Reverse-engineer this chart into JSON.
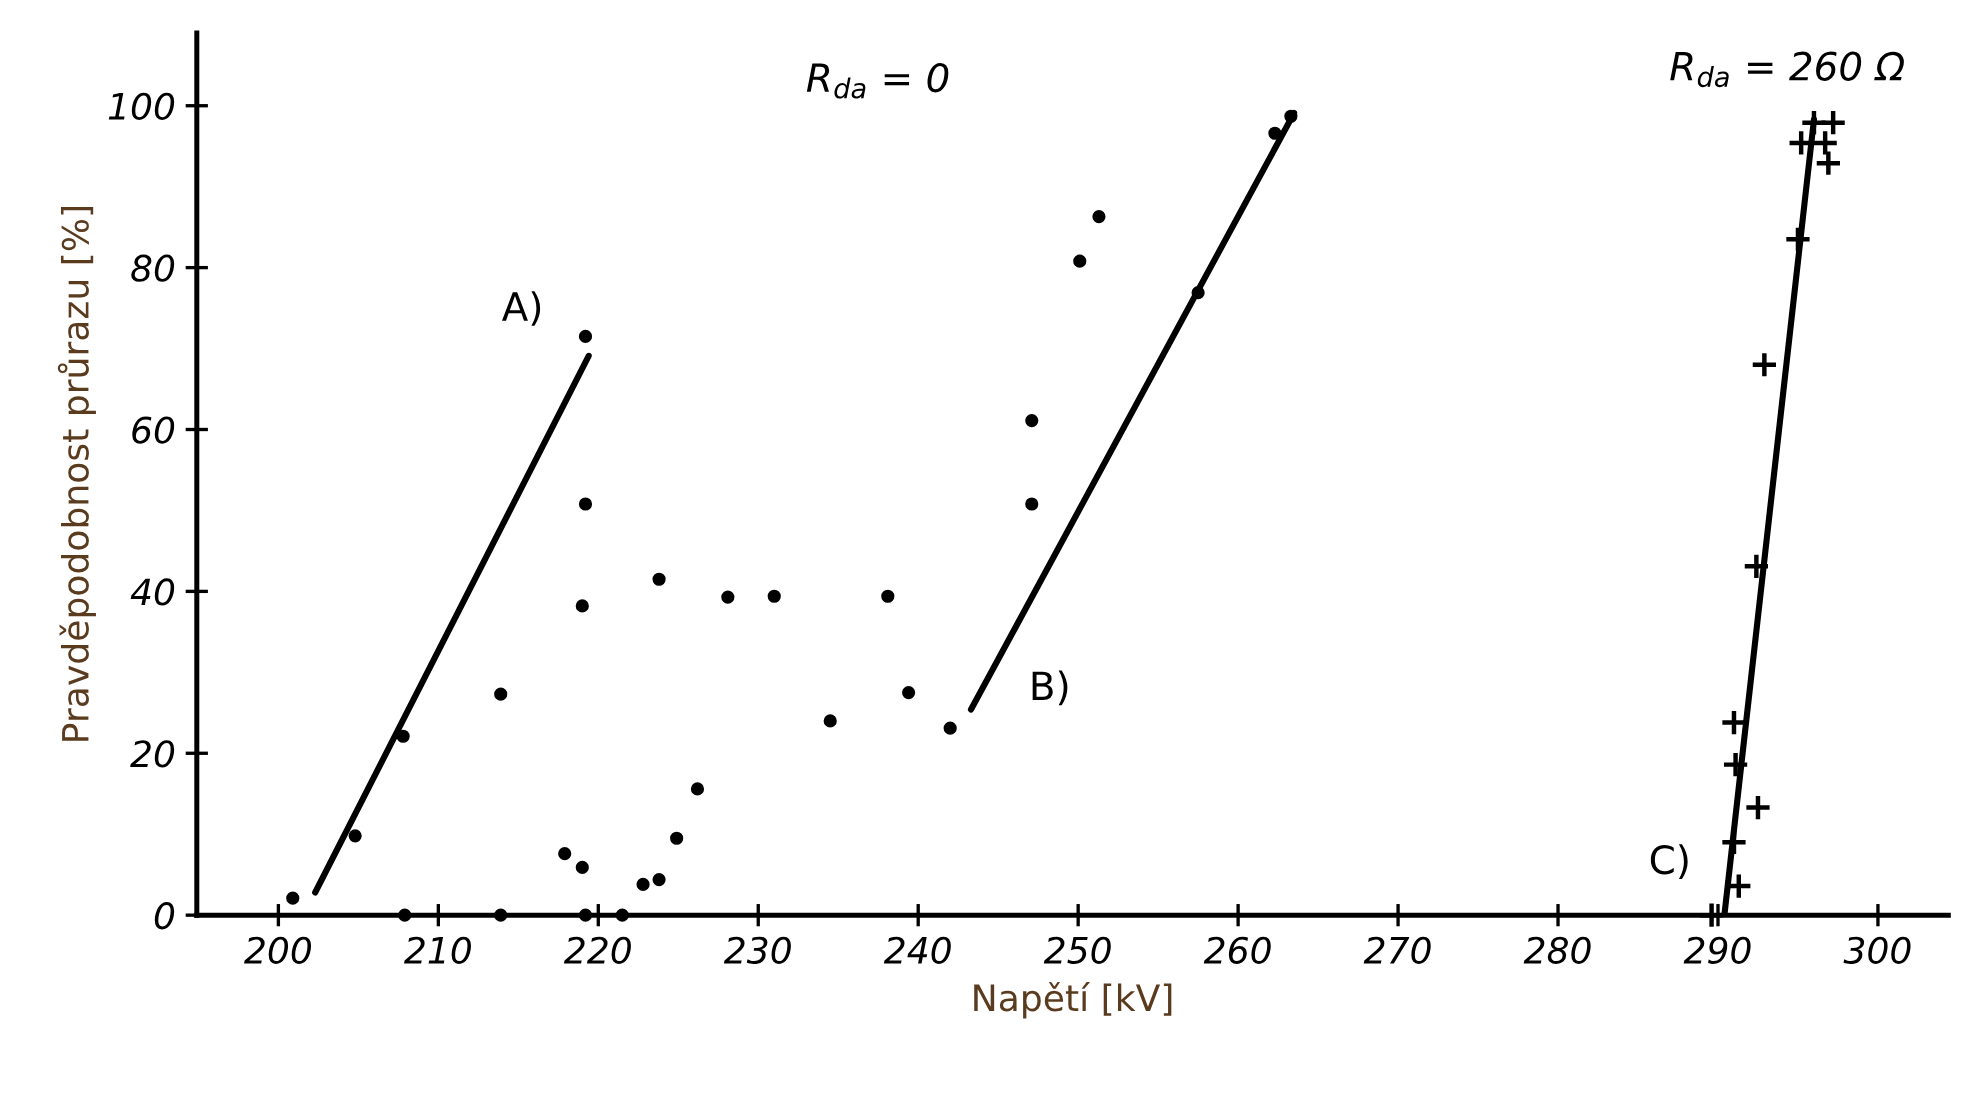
{
  "chart_data": {
    "type": "scatter",
    "xlabel": "Napětí [kV]",
    "ylabel": "Pravděpodobnost průrazu [%]",
    "xlim": [
      194.9,
      304.4
    ],
    "ylim": [
      0,
      109
    ],
    "xticks": [
      200,
      210,
      220,
      230,
      240,
      250,
      260,
      270,
      280,
      290,
      300
    ],
    "yticks": [
      0,
      20,
      40,
      60,
      80,
      100
    ],
    "grid": false,
    "legend": false,
    "series": [
      {
        "marker": "circle",
        "color": "#000000",
        "x": [
          200.9,
          204.8,
          207.8,
          207.9,
          213.9,
          213.9,
          219.2,
          219.2,
          219.0,
          217.9,
          219.0,
          219.2,
          221.5,
          222.8,
          223.8,
          224.9,
          226.2,
          223.8,
          228.1,
          231.0,
          234.5,
          238.1,
          239.4,
          242.0,
          247.1,
          247.1,
          250.1,
          251.3,
          257.5,
          262.3,
          263.3
        ],
        "values": [
          2.1,
          9.8,
          22.1,
          0,
          27.3,
          0,
          71.5,
          50.8,
          38.2,
          7.6,
          5.9,
          0,
          0,
          3.8,
          4.4,
          9.5,
          15.6,
          41.5,
          39.3,
          39.4,
          24.0,
          39.4,
          27.5,
          23.1,
          50.8,
          61.1,
          80.8,
          86.3,
          76.9,
          96.6,
          98.7
        ]
      },
      {
        "marker": "cross",
        "color": "#000000",
        "x": [
          295.2,
          296.0,
          297.2,
          296.7,
          296.9,
          295.0,
          292.9,
          292.4,
          291.0,
          291.1,
          292.5,
          291.0,
          291.3,
          289.6
        ],
        "values": [
          95.4,
          97.9,
          97.9,
          95.4,
          92.9,
          83.5,
          68.0,
          43.1,
          23.8,
          18.6,
          13.3,
          9.0,
          3.6,
          0
        ]
      },
      {
        "type": "line",
        "marker": "none",
        "color": "#000000",
        "x": [
          202.3,
          219.4
        ],
        "values": [
          2.8,
          69.1
        ]
      },
      {
        "type": "line",
        "marker": "none",
        "color": "#000000",
        "x": [
          243.3,
          263.5
        ],
        "values": [
          25.4,
          99.1
        ]
      },
      {
        "type": "line",
        "marker": "none",
        "color": "#000000",
        "x": [
          290.4,
          296.0
        ],
        "values": [
          0,
          98.3
        ]
      }
    ],
    "annotations": [
      "A)",
      "B)",
      "C)",
      "R$_{da}$ = 0",
      "R$_{da}$ = 260 Ω"
    ]
  }
}
